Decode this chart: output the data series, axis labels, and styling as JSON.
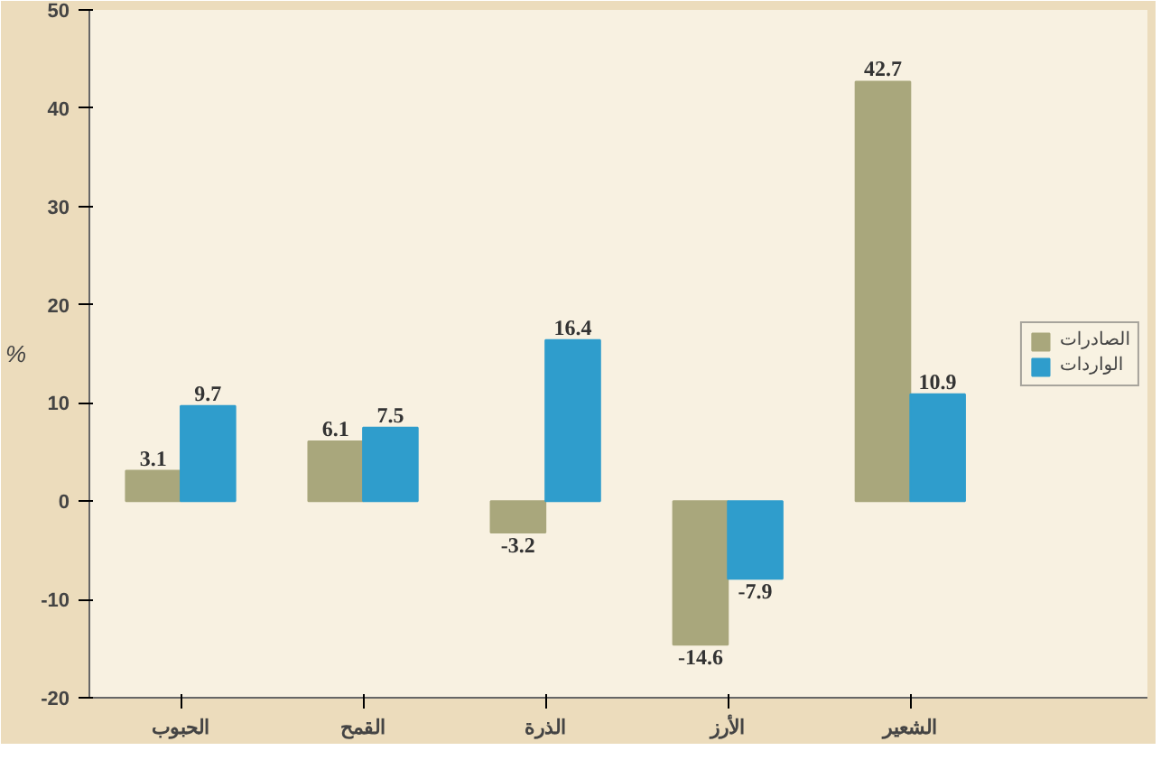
{
  "chart_data": {
    "type": "bar",
    "ylabel": "%",
    "categories": [
      "الحبوب",
      "القمح",
      "الذرة",
      "الأرز",
      "الشعير"
    ],
    "series": [
      {
        "name": "الصادرات",
        "color": "#a9a77c",
        "values": [
          3.1,
          6.1,
          -3.2,
          -14.6,
          42.7
        ]
      },
      {
        "name": "الواردات",
        "color": "#2f9dcc",
        "values": [
          9.7,
          7.5,
          16.4,
          -7.9,
          10.9
        ]
      }
    ],
    "ylim": [
      -20,
      50
    ],
    "yticks": [
      -20,
      -10,
      0,
      10,
      20,
      30,
      40,
      50
    ],
    "data_labels": true,
    "legend": "right",
    "grid": false
  }
}
